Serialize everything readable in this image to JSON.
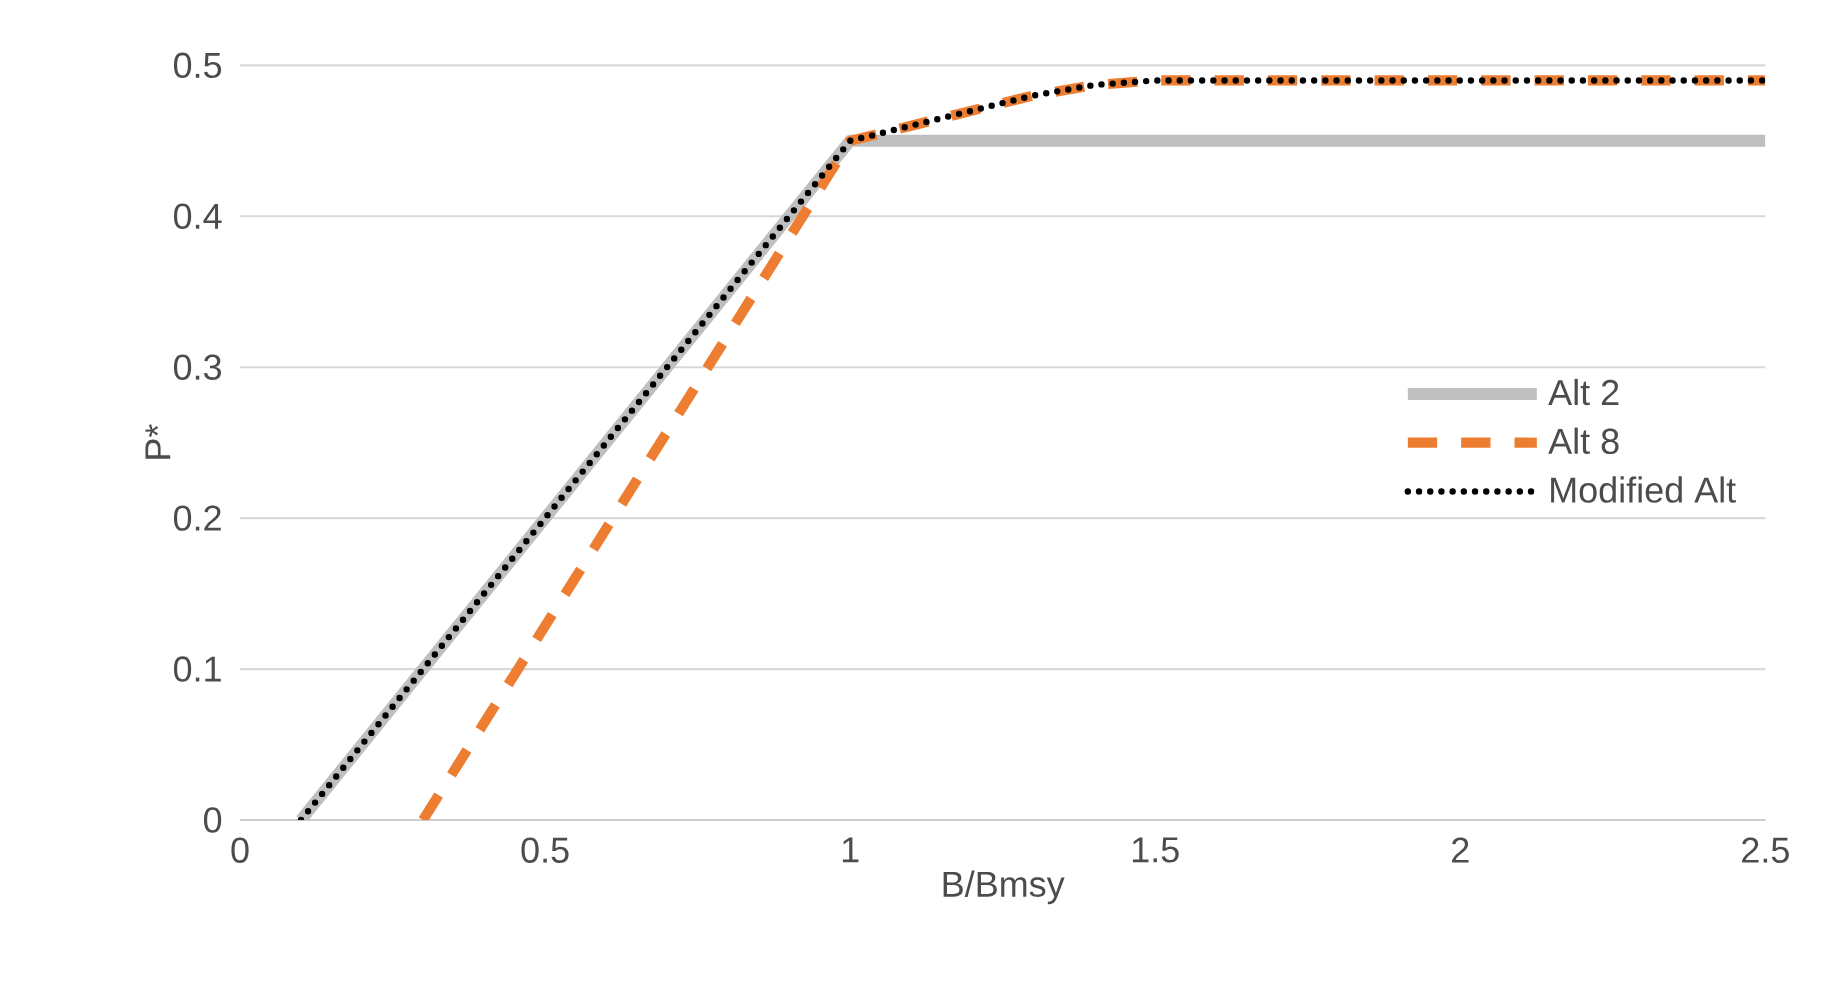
{
  "chart_data": {
    "type": "line",
    "xlabel": "B/Bmsy",
    "ylabel": "P*",
    "xlim": [
      0,
      2.5
    ],
    "ylim": [
      0,
      0.5
    ],
    "xticks": [
      0,
      0.5,
      1,
      1.5,
      2,
      2.5
    ],
    "yticks": [
      0,
      0.1,
      0.2,
      0.3,
      0.4,
      0.5
    ],
    "grid": "y",
    "legend": "right",
    "series": [
      {
        "name": "Alt 2",
        "color": "#bfbfbf",
        "line_style": "solid",
        "x": [
          0.1,
          1,
          2.5
        ],
        "values": [
          0,
          0.45,
          0.45
        ]
      },
      {
        "name": "Alt 8",
        "color": "#ed7d31",
        "line_style": "dashed",
        "x": [
          0.3,
          1,
          1.1,
          1.2,
          1.3,
          1.4,
          1.5,
          2.5
        ],
        "values": [
          0,
          0.45,
          0.46,
          0.47,
          0.48,
          0.487,
          0.49,
          0.49
        ]
      },
      {
        "name": "Modified Alt",
        "color": "#000000",
        "line_style": "dotted",
        "x": [
          0.1,
          1,
          1.1,
          1.2,
          1.3,
          1.4,
          1.5,
          2.5
        ],
        "values": [
          0,
          0.45,
          0.46,
          0.47,
          0.48,
          0.487,
          0.49,
          0.49
        ]
      }
    ]
  }
}
